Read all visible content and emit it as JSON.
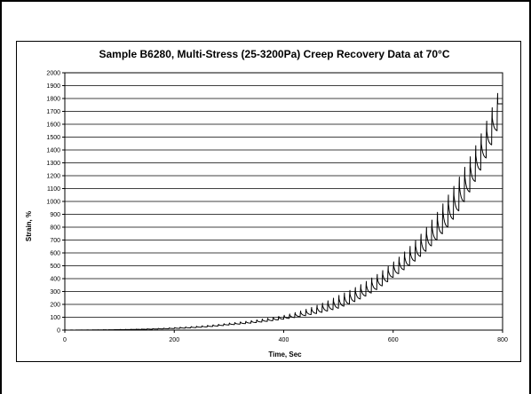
{
  "chart_data": {
    "type": "line",
    "title": "Sample B6280, Multi-Stress (25-3200Pa) Creep Recovery Data at 70°C",
    "xlabel": "Time, Sec",
    "ylabel": "Strain, %",
    "xlim": [
      0,
      800
    ],
    "ylim": [
      0,
      2000
    ],
    "xticks": [
      0,
      200,
      400,
      600,
      800
    ],
    "yticks": [
      0,
      100,
      200,
      300,
      400,
      500,
      600,
      700,
      800,
      900,
      1000,
      1100,
      1200,
      1300,
      1400,
      1500,
      1600,
      1700,
      1800,
      1900,
      2000
    ],
    "grid": "horizontal",
    "legend": "none",
    "line_color": "#000000",
    "series": [
      {
        "cycle_seconds": 10,
        "creep_seconds": 1,
        "cycles": [
          {
            "t": 0,
            "base": 0,
            "peak": 1
          },
          {
            "t": 100,
            "base": 3,
            "peak": 5
          },
          {
            "t": 200,
            "base": 12,
            "peak": 20
          },
          {
            "t": 300,
            "base": 40,
            "peak": 55
          },
          {
            "t": 400,
            "base": 85,
            "peak": 115
          },
          {
            "t": 500,
            "base": 170,
            "peak": 270
          },
          {
            "t": 600,
            "base": 410,
            "peak": 530
          },
          {
            "t": 700,
            "base": 800,
            "peak": 1050
          },
          {
            "t": 790,
            "base": 1550,
            "peak": 1840
          }
        ]
      }
    ]
  }
}
